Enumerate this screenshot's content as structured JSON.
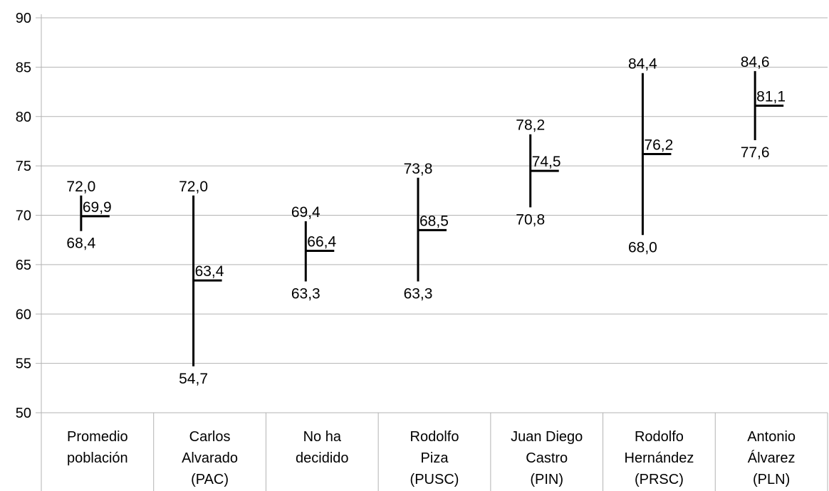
{
  "chart_data": {
    "type": "bar",
    "subtype": "high-low-mean",
    "title": "",
    "xlabel": "",
    "ylabel": "",
    "ylim": [
      50,
      90
    ],
    "yticks": [
      50,
      55,
      60,
      65,
      70,
      75,
      80,
      85,
      90
    ],
    "ytick_labels": [
      "50",
      "55",
      "60",
      "65",
      "70",
      "75",
      "80",
      "85",
      "90"
    ],
    "grid": true,
    "categories": [
      [
        "Promedio",
        "población"
      ],
      [
        "Carlos",
        "Alvarado",
        "(PAC)"
      ],
      [
        "No ha",
        "decidido"
      ],
      [
        "Rodolfo",
        "Piza",
        "(PUSC)"
      ],
      [
        "Juan Diego",
        "Castro",
        "(PIN)"
      ],
      [
        "Rodolfo",
        "Hernández",
        "(PRSC)"
      ],
      [
        "Antonio",
        "Álvarez",
        "(PLN)"
      ]
    ],
    "high": [
      72.0,
      72.0,
      69.4,
      73.8,
      78.2,
      84.4,
      84.6
    ],
    "low": [
      68.4,
      54.7,
      63.3,
      63.3,
      70.8,
      68.0,
      77.6
    ],
    "mean": [
      69.9,
      63.4,
      66.4,
      68.5,
      74.5,
      76.2,
      81.1
    ],
    "high_labels": [
      "72,0",
      "72,0",
      "69,4",
      "73,8",
      "78,2",
      "84,4",
      "84,6"
    ],
    "low_labels": [
      "68,4",
      "54,7",
      "63,3",
      "63,3",
      "70,8",
      "68,0",
      "77,6"
    ],
    "mean_labels": [
      "69,9",
      "63,4",
      "66,4",
      "68,5",
      "74,5",
      "76,2",
      "81,1"
    ]
  }
}
